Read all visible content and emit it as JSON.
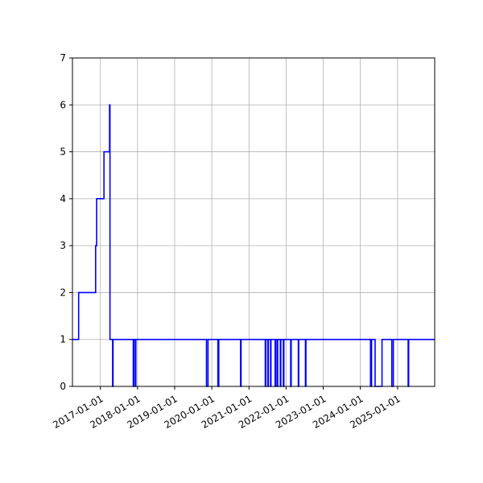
{
  "chart_data": {
    "type": "line",
    "step": "post",
    "title": "",
    "xlabel": "",
    "ylabel": "",
    "grid": true,
    "legend": "none",
    "xaxis_type": "date",
    "xlim": [
      "2016-04-01",
      "2026-01-01"
    ],
    "ylim": [
      0,
      7
    ],
    "xticks": [
      "2017-01-01",
      "2018-01-01",
      "2019-01-01",
      "2020-01-01",
      "2021-01-01",
      "2022-01-01",
      "2023-01-01",
      "2024-01-01",
      "2025-01-01"
    ],
    "yticks": [
      0,
      1,
      2,
      3,
      4,
      5,
      6,
      7
    ],
    "series": [
      {
        "name": "",
        "color": "#0000ff",
        "points": [
          [
            "2016-04-01",
            1
          ],
          [
            "2016-06-01",
            2
          ],
          [
            "2016-11-15",
            3
          ],
          [
            "2016-11-25",
            4
          ],
          [
            "2017-02-05",
            5
          ],
          [
            "2017-04-01",
            6
          ],
          [
            "2017-04-05",
            1
          ],
          [
            "2017-05-01",
            0
          ],
          [
            "2017-05-05",
            1
          ],
          [
            "2017-11-20",
            0
          ],
          [
            "2017-11-25",
            1
          ],
          [
            "2017-12-10",
            0
          ],
          [
            "2017-12-15",
            1
          ],
          [
            "2019-11-10",
            0
          ],
          [
            "2019-11-25",
            1
          ],
          [
            "2020-03-01",
            0
          ],
          [
            "2020-03-10",
            1
          ],
          [
            "2020-10-10",
            0
          ],
          [
            "2020-10-15",
            1
          ],
          [
            "2021-06-10",
            0
          ],
          [
            "2021-06-15",
            1
          ],
          [
            "2021-07-05",
            0
          ],
          [
            "2021-07-10",
            1
          ],
          [
            "2021-08-01",
            0
          ],
          [
            "2021-08-05",
            1
          ],
          [
            "2021-09-15",
            0
          ],
          [
            "2021-09-20",
            1
          ],
          [
            "2021-10-05",
            0
          ],
          [
            "2021-10-10",
            1
          ],
          [
            "2021-11-05",
            0
          ],
          [
            "2021-11-10",
            1
          ],
          [
            "2021-12-05",
            0
          ],
          [
            "2021-12-10",
            1
          ],
          [
            "2022-02-15",
            0
          ],
          [
            "2022-02-20",
            1
          ],
          [
            "2022-05-01",
            0
          ],
          [
            "2022-05-05",
            1
          ],
          [
            "2022-07-10",
            0
          ],
          [
            "2022-07-15",
            1
          ],
          [
            "2024-04-10",
            0
          ],
          [
            "2024-04-20",
            1
          ],
          [
            "2024-05-25",
            0
          ],
          [
            "2024-08-01",
            1
          ],
          [
            "2024-11-05",
            0
          ],
          [
            "2024-11-20",
            1
          ],
          [
            "2025-04-15",
            0
          ],
          [
            "2025-04-20",
            1
          ],
          [
            "2026-01-01",
            1
          ]
        ]
      }
    ]
  }
}
